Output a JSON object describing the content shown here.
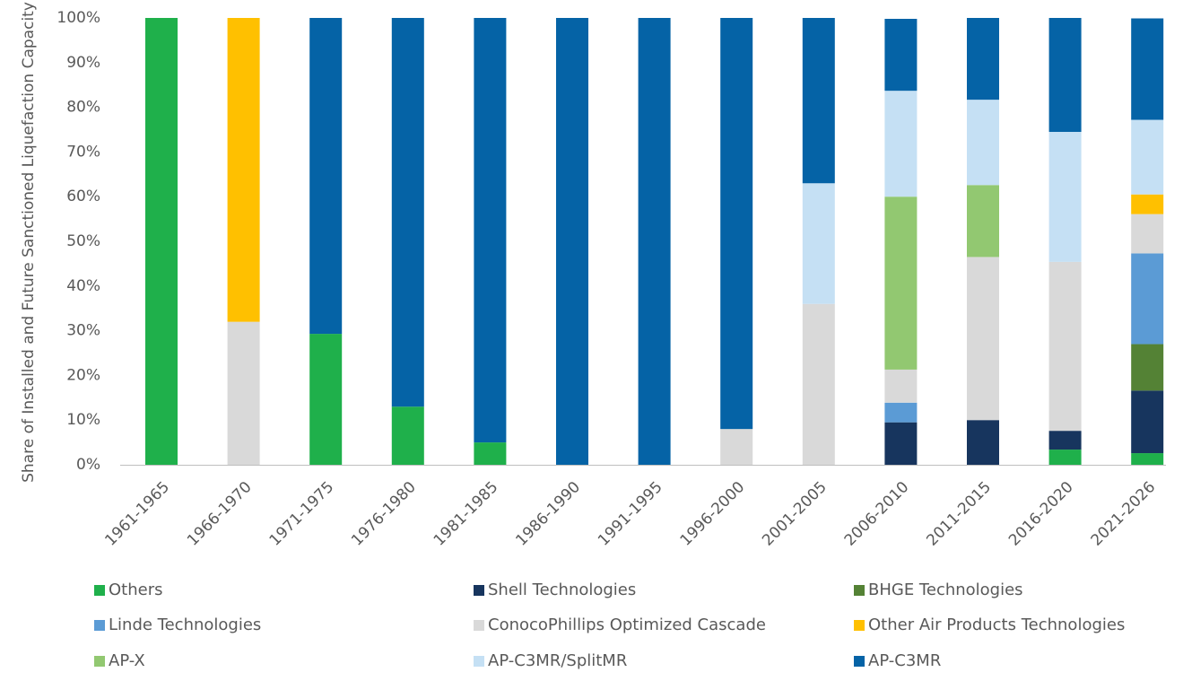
{
  "chart_data": {
    "type": "stacked_bar",
    "y_label": "Share of Installed and Future Sanctioned Liquefaction Capacity",
    "categories": [
      "1961-1965",
      "1966-1970",
      "1971-1975",
      "1976-1980",
      "1981-1985",
      "1986-1990",
      "1991-1995",
      "1996-2000",
      "2001-2005",
      "2006-2010",
      "2011-2015",
      "2016-2020",
      "2021-2026"
    ],
    "series": [
      {
        "name": "Others",
        "color": "#1fb04b",
        "values": [
          100,
          0,
          29.3,
          13,
          5,
          0,
          0,
          0,
          0,
          0,
          0,
          3.4,
          2.6
        ]
      },
      {
        "name": "Shell Technologies",
        "color": "#17355e",
        "values": [
          0,
          0,
          0,
          0,
          0,
          0,
          0,
          0,
          0,
          9.5,
          10,
          4.2,
          14
        ]
      },
      {
        "name": "BHGE Technologies",
        "color": "#548235",
        "values": [
          0,
          0,
          0,
          0,
          0,
          0,
          0,
          0,
          0,
          0,
          0,
          0,
          10.4
        ]
      },
      {
        "name": "Linde Technologies",
        "color": "#5b9bd5",
        "values": [
          0,
          0,
          0,
          0,
          0,
          0,
          0,
          0,
          0,
          4.4,
          0,
          0,
          20.3
        ]
      },
      {
        "name": "ConocoPhillips Optimized Cascade",
        "color": "#d9d9d9",
        "values": [
          0,
          32,
          0,
          0,
          0,
          0,
          0,
          8,
          36,
          7.4,
          36.5,
          37.8,
          8.8
        ]
      },
      {
        "name": "Other Air Products Technologies",
        "color": "#ffc000",
        "values": [
          0,
          68,
          0,
          0,
          0,
          0,
          0,
          0,
          0,
          0,
          0,
          0,
          4.4
        ]
      },
      {
        "name": "AP-X",
        "color": "#92c871",
        "values": [
          0,
          0,
          0,
          0,
          0,
          0,
          0,
          0,
          0,
          38.7,
          16.1,
          0,
          0
        ]
      },
      {
        "name": "AP-C3MR/SplitMR",
        "color": "#c5e0f4",
        "values": [
          0,
          0,
          0,
          0,
          0,
          0,
          0,
          0,
          27,
          23.7,
          19.1,
          29.1,
          16.7
        ]
      },
      {
        "name": "AP-C3MR",
        "color": "#0563a6",
        "values": [
          0,
          0,
          70.7,
          87,
          95,
          100,
          100,
          92,
          37,
          16.1,
          18.3,
          25.5,
          22.7
        ]
      }
    ],
    "ylim": [
      0,
      100
    ],
    "yticks": [
      {
        "value": 0,
        "label": "0%"
      },
      {
        "value": 10,
        "label": "10%"
      },
      {
        "value": 20,
        "label": "20%"
      },
      {
        "value": 30,
        "label": "30%"
      },
      {
        "value": 40,
        "label": "40%"
      },
      {
        "value": 50,
        "label": "50%"
      },
      {
        "value": 60,
        "label": "60%"
      },
      {
        "value": 70,
        "label": "70%"
      },
      {
        "value": 80,
        "label": "80%"
      },
      {
        "value": 90,
        "label": "90%"
      },
      {
        "value": 100,
        "label": "100%"
      }
    ],
    "grid": false
  }
}
